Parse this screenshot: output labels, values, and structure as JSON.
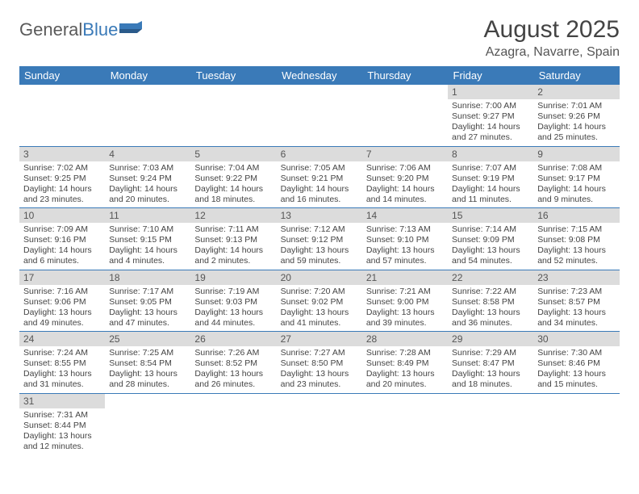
{
  "logo": {
    "part1": "General",
    "part2": "Blue"
  },
  "title": "August 2025",
  "location": "Azagra, Navarre, Spain",
  "colors": {
    "header_bg": "#3a7ab8",
    "header_text": "#ffffff",
    "daynum_bg": "#dcdcdc",
    "border": "#3a7ab8",
    "logo_gray": "#5a5a5a",
    "logo_blue": "#3a7ab8"
  },
  "weekdays": [
    "Sunday",
    "Monday",
    "Tuesday",
    "Wednesday",
    "Thursday",
    "Friday",
    "Saturday"
  ],
  "weeks": [
    [
      null,
      null,
      null,
      null,
      null,
      {
        "n": "1",
        "sr": "Sunrise: 7:00 AM",
        "ss": "Sunset: 9:27 PM",
        "dl1": "Daylight: 14 hours",
        "dl2": "and 27 minutes."
      },
      {
        "n": "2",
        "sr": "Sunrise: 7:01 AM",
        "ss": "Sunset: 9:26 PM",
        "dl1": "Daylight: 14 hours",
        "dl2": "and 25 minutes."
      }
    ],
    [
      {
        "n": "3",
        "sr": "Sunrise: 7:02 AM",
        "ss": "Sunset: 9:25 PM",
        "dl1": "Daylight: 14 hours",
        "dl2": "and 23 minutes."
      },
      {
        "n": "4",
        "sr": "Sunrise: 7:03 AM",
        "ss": "Sunset: 9:24 PM",
        "dl1": "Daylight: 14 hours",
        "dl2": "and 20 minutes."
      },
      {
        "n": "5",
        "sr": "Sunrise: 7:04 AM",
        "ss": "Sunset: 9:22 PM",
        "dl1": "Daylight: 14 hours",
        "dl2": "and 18 minutes."
      },
      {
        "n": "6",
        "sr": "Sunrise: 7:05 AM",
        "ss": "Sunset: 9:21 PM",
        "dl1": "Daylight: 14 hours",
        "dl2": "and 16 minutes."
      },
      {
        "n": "7",
        "sr": "Sunrise: 7:06 AM",
        "ss": "Sunset: 9:20 PM",
        "dl1": "Daylight: 14 hours",
        "dl2": "and 14 minutes."
      },
      {
        "n": "8",
        "sr": "Sunrise: 7:07 AM",
        "ss": "Sunset: 9:19 PM",
        "dl1": "Daylight: 14 hours",
        "dl2": "and 11 minutes."
      },
      {
        "n": "9",
        "sr": "Sunrise: 7:08 AM",
        "ss": "Sunset: 9:17 PM",
        "dl1": "Daylight: 14 hours",
        "dl2": "and 9 minutes."
      }
    ],
    [
      {
        "n": "10",
        "sr": "Sunrise: 7:09 AM",
        "ss": "Sunset: 9:16 PM",
        "dl1": "Daylight: 14 hours",
        "dl2": "and 6 minutes."
      },
      {
        "n": "11",
        "sr": "Sunrise: 7:10 AM",
        "ss": "Sunset: 9:15 PM",
        "dl1": "Daylight: 14 hours",
        "dl2": "and 4 minutes."
      },
      {
        "n": "12",
        "sr": "Sunrise: 7:11 AM",
        "ss": "Sunset: 9:13 PM",
        "dl1": "Daylight: 14 hours",
        "dl2": "and 2 minutes."
      },
      {
        "n": "13",
        "sr": "Sunrise: 7:12 AM",
        "ss": "Sunset: 9:12 PM",
        "dl1": "Daylight: 13 hours",
        "dl2": "and 59 minutes."
      },
      {
        "n": "14",
        "sr": "Sunrise: 7:13 AM",
        "ss": "Sunset: 9:10 PM",
        "dl1": "Daylight: 13 hours",
        "dl2": "and 57 minutes."
      },
      {
        "n": "15",
        "sr": "Sunrise: 7:14 AM",
        "ss": "Sunset: 9:09 PM",
        "dl1": "Daylight: 13 hours",
        "dl2": "and 54 minutes."
      },
      {
        "n": "16",
        "sr": "Sunrise: 7:15 AM",
        "ss": "Sunset: 9:08 PM",
        "dl1": "Daylight: 13 hours",
        "dl2": "and 52 minutes."
      }
    ],
    [
      {
        "n": "17",
        "sr": "Sunrise: 7:16 AM",
        "ss": "Sunset: 9:06 PM",
        "dl1": "Daylight: 13 hours",
        "dl2": "and 49 minutes."
      },
      {
        "n": "18",
        "sr": "Sunrise: 7:17 AM",
        "ss": "Sunset: 9:05 PM",
        "dl1": "Daylight: 13 hours",
        "dl2": "and 47 minutes."
      },
      {
        "n": "19",
        "sr": "Sunrise: 7:19 AM",
        "ss": "Sunset: 9:03 PM",
        "dl1": "Daylight: 13 hours",
        "dl2": "and 44 minutes."
      },
      {
        "n": "20",
        "sr": "Sunrise: 7:20 AM",
        "ss": "Sunset: 9:02 PM",
        "dl1": "Daylight: 13 hours",
        "dl2": "and 41 minutes."
      },
      {
        "n": "21",
        "sr": "Sunrise: 7:21 AM",
        "ss": "Sunset: 9:00 PM",
        "dl1": "Daylight: 13 hours",
        "dl2": "and 39 minutes."
      },
      {
        "n": "22",
        "sr": "Sunrise: 7:22 AM",
        "ss": "Sunset: 8:58 PM",
        "dl1": "Daylight: 13 hours",
        "dl2": "and 36 minutes."
      },
      {
        "n": "23",
        "sr": "Sunrise: 7:23 AM",
        "ss": "Sunset: 8:57 PM",
        "dl1": "Daylight: 13 hours",
        "dl2": "and 34 minutes."
      }
    ],
    [
      {
        "n": "24",
        "sr": "Sunrise: 7:24 AM",
        "ss": "Sunset: 8:55 PM",
        "dl1": "Daylight: 13 hours",
        "dl2": "and 31 minutes."
      },
      {
        "n": "25",
        "sr": "Sunrise: 7:25 AM",
        "ss": "Sunset: 8:54 PM",
        "dl1": "Daylight: 13 hours",
        "dl2": "and 28 minutes."
      },
      {
        "n": "26",
        "sr": "Sunrise: 7:26 AM",
        "ss": "Sunset: 8:52 PM",
        "dl1": "Daylight: 13 hours",
        "dl2": "and 26 minutes."
      },
      {
        "n": "27",
        "sr": "Sunrise: 7:27 AM",
        "ss": "Sunset: 8:50 PM",
        "dl1": "Daylight: 13 hours",
        "dl2": "and 23 minutes."
      },
      {
        "n": "28",
        "sr": "Sunrise: 7:28 AM",
        "ss": "Sunset: 8:49 PM",
        "dl1": "Daylight: 13 hours",
        "dl2": "and 20 minutes."
      },
      {
        "n": "29",
        "sr": "Sunrise: 7:29 AM",
        "ss": "Sunset: 8:47 PM",
        "dl1": "Daylight: 13 hours",
        "dl2": "and 18 minutes."
      },
      {
        "n": "30",
        "sr": "Sunrise: 7:30 AM",
        "ss": "Sunset: 8:46 PM",
        "dl1": "Daylight: 13 hours",
        "dl2": "and 15 minutes."
      }
    ],
    [
      {
        "n": "31",
        "sr": "Sunrise: 7:31 AM",
        "ss": "Sunset: 8:44 PM",
        "dl1": "Daylight: 13 hours",
        "dl2": "and 12 minutes."
      },
      null,
      null,
      null,
      null,
      null,
      null
    ]
  ]
}
